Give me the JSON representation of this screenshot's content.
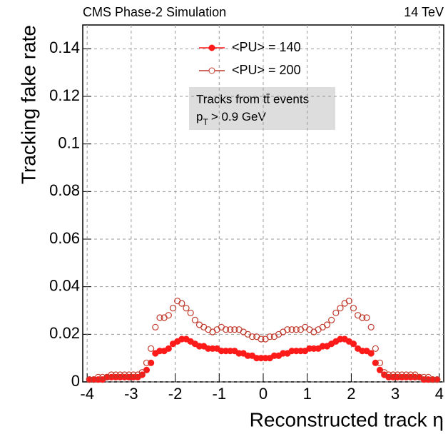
{
  "chart_data": {
    "type": "scatter",
    "header_left": "CMS Phase-2 Simulation",
    "header_right": "14 TeV",
    "xlabel": "Reconstructed track η",
    "ylabel": "Tracking fake rate",
    "annotation": {
      "line1": "Tracks from tt̄ events",
      "p": "p",
      "sub": "T",
      "rest": "> 0.9 GeV"
    },
    "legend": "upper center",
    "grid": true,
    "xlim": [
      -4.1,
      4.1
    ],
    "xticks": [
      -4,
      -3,
      -2,
      -1,
      0,
      1,
      2,
      3,
      4
    ],
    "ylim": [
      0,
      0.15
    ],
    "yticks": [
      0,
      0.02,
      0.04,
      0.06,
      0.08,
      0.1,
      0.12,
      0.14
    ],
    "x": [
      -3.95,
      -3.85,
      -3.75,
      -3.65,
      -3.55,
      -3.45,
      -3.35,
      -3.25,
      -3.15,
      -3.05,
      -2.95,
      -2.85,
      -2.75,
      -2.65,
      -2.55,
      -2.45,
      -2.35,
      -2.25,
      -2.15,
      -2.05,
      -1.95,
      -1.85,
      -1.75,
      -1.65,
      -1.55,
      -1.45,
      -1.35,
      -1.25,
      -1.15,
      -1.05,
      -0.95,
      -0.85,
      -0.75,
      -0.65,
      -0.55,
      -0.45,
      -0.35,
      -0.25,
      -0.15,
      -0.05,
      0.05,
      0.15,
      0.25,
      0.35,
      0.45,
      0.55,
      0.65,
      0.75,
      0.85,
      0.95,
      1.05,
      1.15,
      1.25,
      1.35,
      1.45,
      1.55,
      1.65,
      1.75,
      1.85,
      1.95,
      2.05,
      2.15,
      2.25,
      2.35,
      2.45,
      2.55,
      2.65,
      2.75,
      2.85,
      2.95,
      3.05,
      3.15,
      3.25,
      3.35,
      3.45,
      3.55,
      3.65,
      3.75,
      3.85,
      3.95
    ],
    "series": [
      {
        "name": "<PU> = 140",
        "color": "#ff1a1a",
        "filled": true,
        "values": [
          0.001,
          0.001,
          0.001,
          0.001,
          0.002,
          0.002,
          0.002,
          0.002,
          0.002,
          0.002,
          0.002,
          0.002,
          0.003,
          0.005,
          0.008,
          0.012,
          0.013,
          0.013,
          0.014,
          0.016,
          0.017,
          0.018,
          0.018,
          0.017,
          0.016,
          0.015,
          0.015,
          0.014,
          0.014,
          0.014,
          0.013,
          0.013,
          0.013,
          0.013,
          0.012,
          0.012,
          0.011,
          0.011,
          0.01,
          0.01,
          0.01,
          0.01,
          0.011,
          0.011,
          0.012,
          0.012,
          0.013,
          0.013,
          0.013,
          0.013,
          0.014,
          0.014,
          0.014,
          0.015,
          0.015,
          0.016,
          0.017,
          0.018,
          0.018,
          0.017,
          0.016,
          0.014,
          0.013,
          0.013,
          0.012,
          0.008,
          0.005,
          0.003,
          0.002,
          0.002,
          0.002,
          0.002,
          0.002,
          0.002,
          0.002,
          0.002,
          0.001,
          0.001,
          0.001,
          0.001
        ]
      },
      {
        "name": "<PU> = 200",
        "color": "#c0392b",
        "filled": false,
        "values": [
          0.001,
          0.001,
          0.002,
          0.002,
          0.002,
          0.003,
          0.003,
          0.003,
          0.003,
          0.003,
          0.003,
          0.003,
          0.004,
          0.008,
          0.014,
          0.023,
          0.027,
          0.027,
          0.028,
          0.031,
          0.034,
          0.033,
          0.031,
          0.029,
          0.026,
          0.024,
          0.023,
          0.022,
          0.021,
          0.022,
          0.023,
          0.022,
          0.022,
          0.022,
          0.022,
          0.021,
          0.02,
          0.019,
          0.019,
          0.018,
          0.018,
          0.019,
          0.019,
          0.02,
          0.021,
          0.022,
          0.022,
          0.022,
          0.022,
          0.023,
          0.022,
          0.021,
          0.022,
          0.023,
          0.024,
          0.026,
          0.029,
          0.031,
          0.033,
          0.034,
          0.031,
          0.028,
          0.027,
          0.027,
          0.023,
          0.014,
          0.008,
          0.004,
          0.003,
          0.003,
          0.003,
          0.003,
          0.003,
          0.003,
          0.003,
          0.002,
          0.002,
          0.002,
          0.001,
          0.001
        ]
      }
    ]
  }
}
